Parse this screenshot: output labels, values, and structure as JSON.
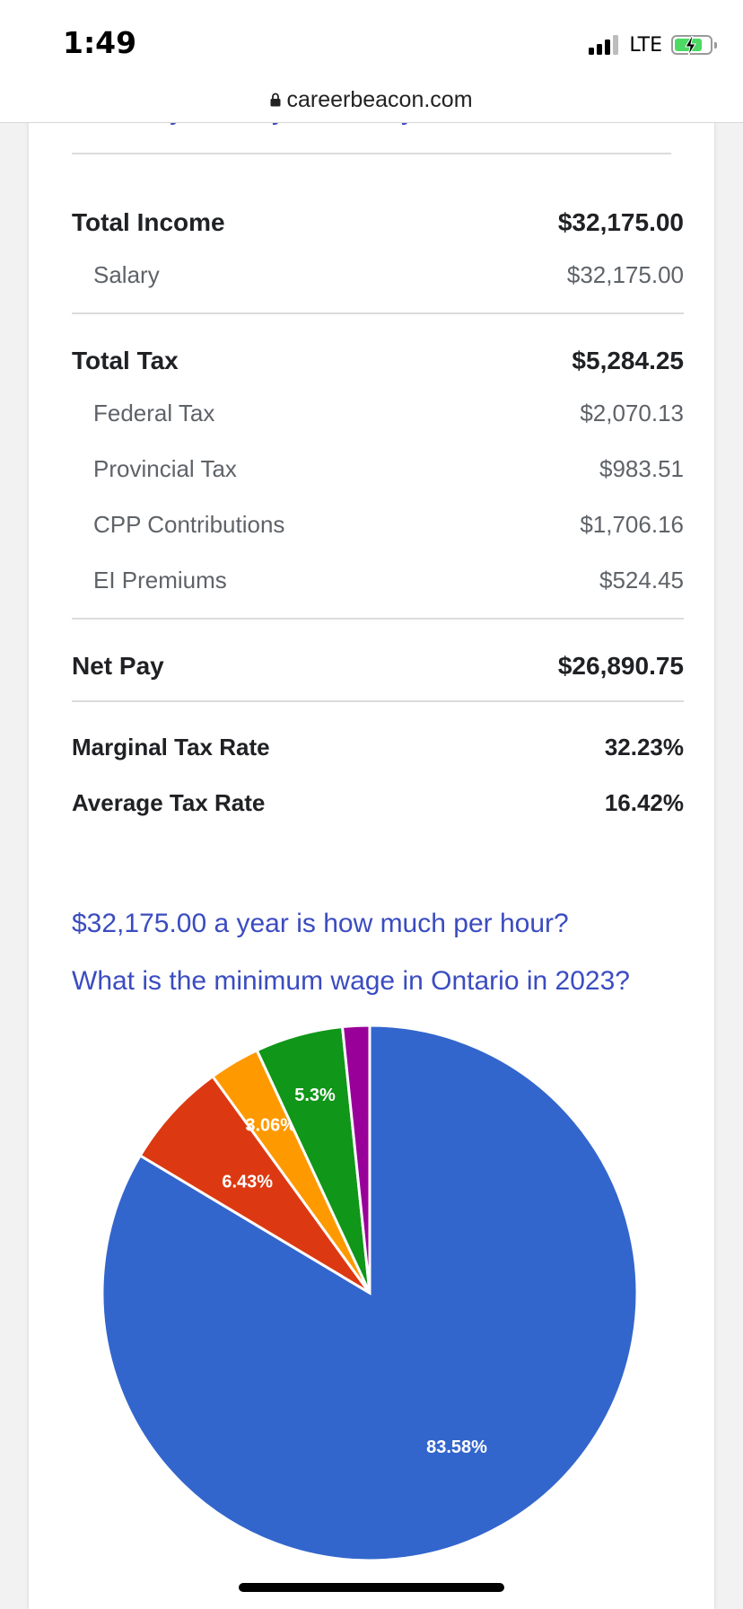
{
  "status_bar": {
    "time": "1:49",
    "network": "LTE",
    "battery_charging": true
  },
  "browser": {
    "url": "careerbeacon.com"
  },
  "tabs": [
    "Weekly",
    "Daily",
    "Hourly"
  ],
  "income": {
    "total_label": "Total Income",
    "total_value": "$32,175.00",
    "items": [
      {
        "label": "Salary",
        "value": "$32,175.00"
      }
    ]
  },
  "tax": {
    "total_label": "Total Tax",
    "total_value": "$5,284.25",
    "items": [
      {
        "label": "Federal Tax",
        "value": "$2,070.13"
      },
      {
        "label": "Provincial Tax",
        "value": "$983.51"
      },
      {
        "label": "CPP Contributions",
        "value": "$1,706.16"
      },
      {
        "label": "EI Premiums",
        "value": "$524.45"
      }
    ]
  },
  "net_pay": {
    "label": "Net Pay",
    "value": "$26,890.75"
  },
  "rates": [
    {
      "label": "Marginal Tax Rate",
      "value": "32.23%"
    },
    {
      "label": "Average Tax Rate",
      "value": "16.42%"
    }
  ],
  "links": [
    "$32,175.00 a year is how much per hour?",
    "What is the minimum wage in Ontario in 2023?"
  ],
  "chart_data": {
    "type": "pie",
    "title": "",
    "slices": [
      {
        "value": 83.58,
        "label": "83.58%",
        "color": "#3366cc"
      },
      {
        "value": 6.43,
        "label": "6.43%",
        "color": "#dc3912"
      },
      {
        "value": 3.06,
        "label": "3.06%",
        "color": "#ff9900"
      },
      {
        "value": 5.3,
        "label": "5.3%",
        "color": "#109618"
      },
      {
        "value": 1.63,
        "label": "",
        "color": "#990099"
      }
    ]
  }
}
